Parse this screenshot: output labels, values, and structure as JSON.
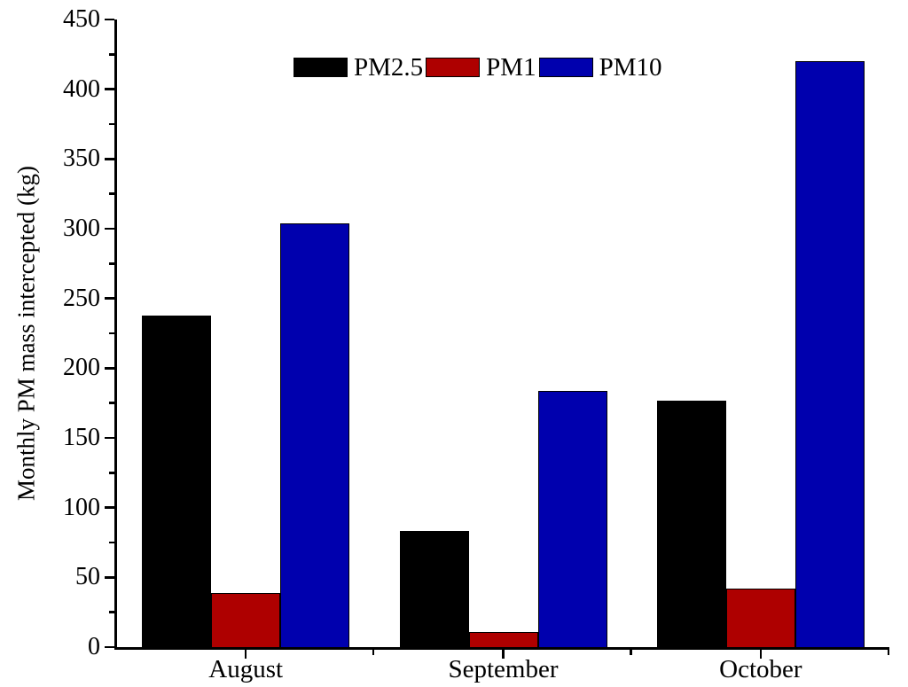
{
  "chart_data": {
    "type": "bar",
    "title": "",
    "xlabel": "",
    "ylabel": "Monthly PM mass intercepted (kg)",
    "categories": [
      "August",
      "September",
      "October"
    ],
    "series": [
      {
        "name": "PM2.5",
        "color": "#000000",
        "values": [
          238,
          83,
          177
        ]
      },
      {
        "name": "PM1",
        "color": "#ae0000",
        "values": [
          39,
          11,
          42
        ]
      },
      {
        "name": "PM10",
        "color": "#0000ae",
        "values": [
          304,
          184,
          420
        ]
      }
    ],
    "ylim": [
      0,
      450
    ],
    "ytick_major_step": 50,
    "ytick_minor_step": 25,
    "grid": false,
    "legend_position": "top-center",
    "bar_edge_color": "#000000",
    "axis_color": "#000000"
  }
}
